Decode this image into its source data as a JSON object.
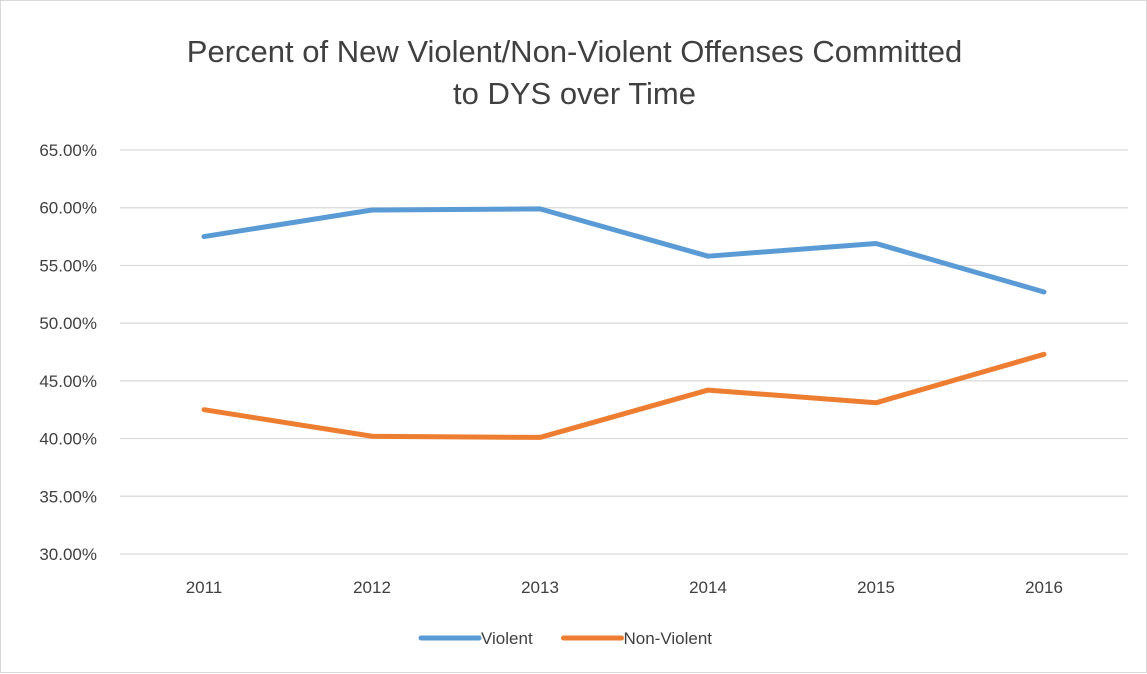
{
  "chart_data": {
    "type": "line",
    "title_lines": [
      "Percent of New Violent/Non-Violent Offenses Committed",
      "to DYS over Time"
    ],
    "categories": [
      "2011",
      "2012",
      "2013",
      "2014",
      "2015",
      "2016"
    ],
    "series": [
      {
        "name": "Violent",
        "color": "#5b9bd5",
        "values": [
          57.5,
          59.8,
          59.9,
          55.8,
          56.9,
          52.7
        ]
      },
      {
        "name": "Non-Violent",
        "color": "#ed7d31",
        "values": [
          42.5,
          40.2,
          40.1,
          44.2,
          43.1,
          47.3
        ]
      }
    ],
    "ylim": [
      30,
      65
    ],
    "y_ticks": [
      {
        "value": 65,
        "label": "65.00%"
      },
      {
        "value": 60,
        "label": "60.00%"
      },
      {
        "value": 55,
        "label": "55.00%"
      },
      {
        "value": 50,
        "label": "50.00%"
      },
      {
        "value": 45,
        "label": "45.00%"
      },
      {
        "value": 40,
        "label": "40.00%"
      },
      {
        "value": 35,
        "label": "35.00%"
      },
      {
        "value": 30,
        "label": "30.00%"
      }
    ],
    "grid": true,
    "legend_position": "bottom"
  }
}
